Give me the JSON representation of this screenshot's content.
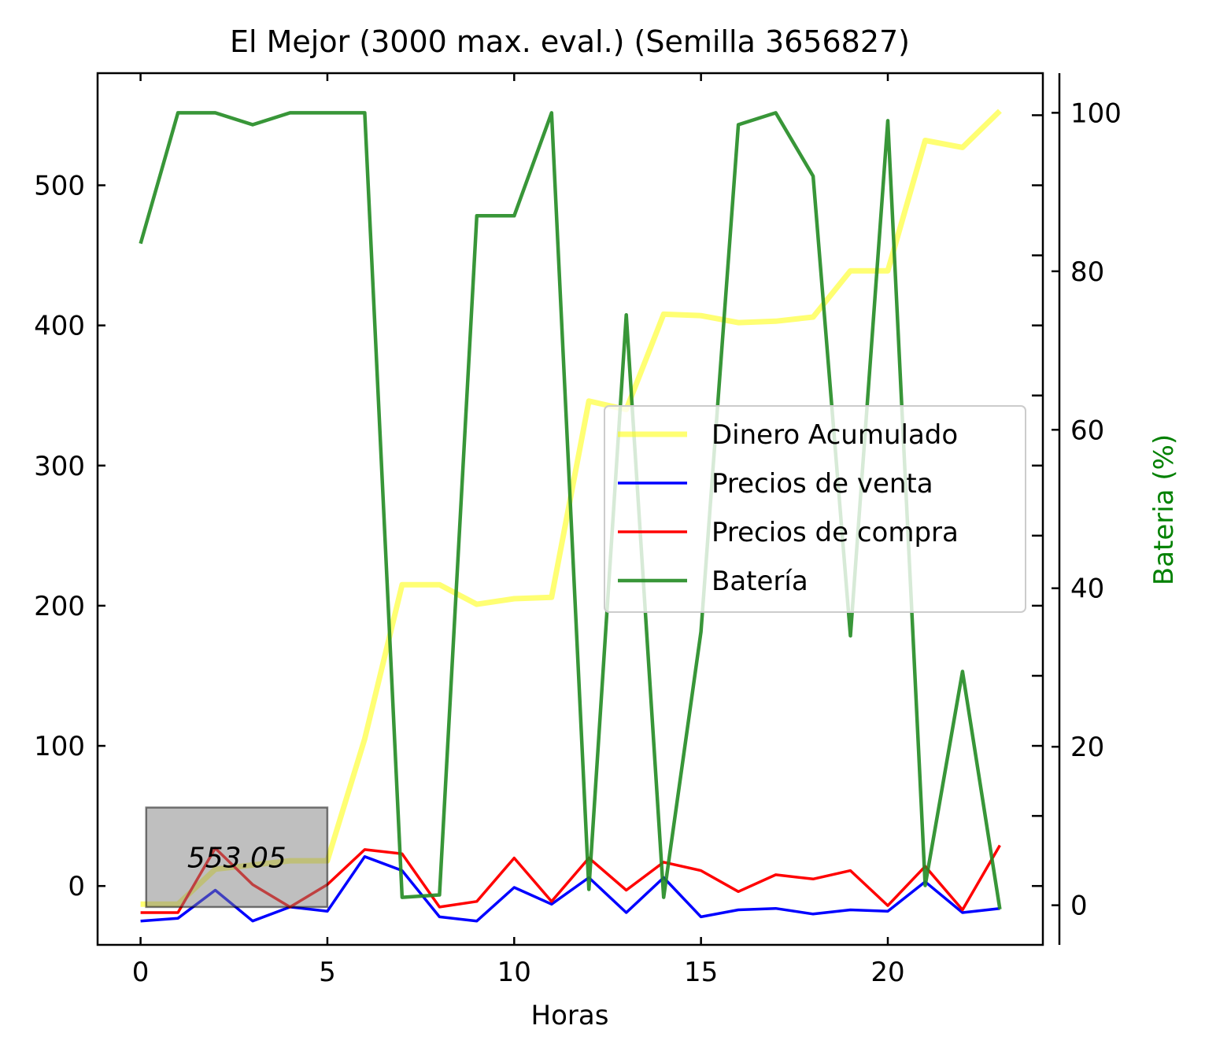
{
  "chart_data": {
    "type": "line",
    "title": "El Mejor (3000 max. eval.) (Semilla 3656827)",
    "xlabel": "Horas",
    "ylabel": "",
    "y2label": "Bateria (%)",
    "xlim": [
      -1.15,
      24.15
    ],
    "ylim": [
      -42,
      580
    ],
    "y2lim": [
      -5,
      105
    ],
    "xticks": [
      0,
      5,
      10,
      15,
      20
    ],
    "yticks": [
      0,
      100,
      200,
      300,
      400,
      500
    ],
    "y2ticks": [
      0,
      20,
      40,
      60,
      80,
      100
    ],
    "x": [
      0,
      1,
      2,
      3,
      4,
      5,
      6,
      7,
      8,
      9,
      10,
      11,
      12,
      13,
      14,
      15,
      16,
      17,
      18,
      19,
      20,
      21,
      22,
      23
    ],
    "series": [
      {
        "name": "Dinero Acumulado",
        "axis": "left",
        "color": "#ffff00",
        "values": [
          -13,
          -13,
          12,
          15,
          18,
          18,
          105,
          215,
          215,
          201,
          205,
          206,
          346,
          340,
          408,
          407,
          402,
          403,
          406,
          439,
          439,
          532,
          527,
          553.05
        ]
      },
      {
        "name": "Precios de venta",
        "axis": "left",
        "color": "#0000ff",
        "values": [
          -25,
          -23,
          -3,
          -25,
          -15,
          -18,
          21,
          11,
          -22,
          -25,
          -1,
          -13,
          6,
          -19,
          6,
          -22,
          -17,
          -16,
          -20,
          -17,
          -18,
          3,
          -19,
          -16
        ]
      },
      {
        "name": "Precios de compra",
        "axis": "left",
        "color": "#ff0000",
        "values": [
          -19,
          -19,
          27,
          1,
          -15,
          1,
          26,
          23,
          -15,
          -11,
          20,
          -11,
          20,
          -3,
          17,
          11,
          -4,
          8,
          5,
          11,
          -14,
          14,
          -17,
          29
        ]
      },
      {
        "name": "Batería",
        "axis": "right",
        "color": "#228b22",
        "values": [
          83.5,
          100,
          100,
          98.5,
          100,
          100,
          100,
          1,
          1.3,
          87,
          87,
          100,
          2,
          74.5,
          1,
          34.5,
          98.5,
          100,
          92,
          34,
          99,
          2.5,
          29.5,
          -0.5
        ]
      }
    ],
    "annotation": {
      "text": "553.05",
      "x_range": [
        0.15,
        5.0
      ],
      "y_range": [
        -15,
        56
      ]
    },
    "legend": {
      "position": "center-right",
      "entries": [
        "Dinero Acumulado",
        "Precios de venta",
        "Precios de compra",
        "Batería"
      ]
    },
    "grid": false
  }
}
